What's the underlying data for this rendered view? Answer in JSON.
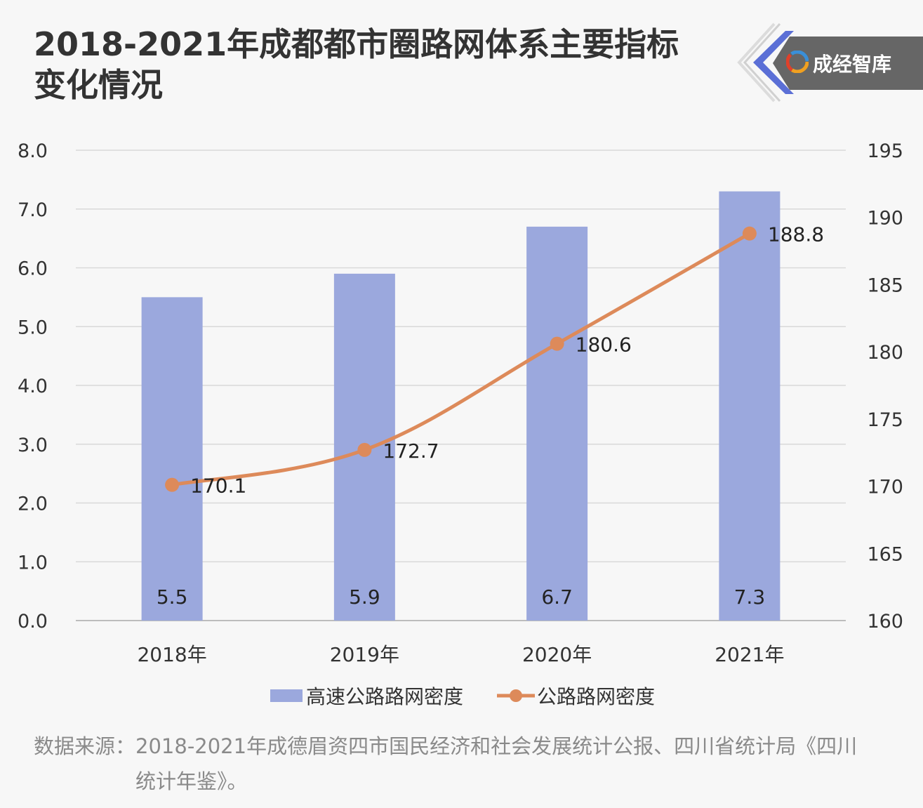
{
  "title": {
    "line1": "2018-2021年成都都市圈路网体系主要指标",
    "line2": "变化情况"
  },
  "brand": {
    "name": "成经智库",
    "icon": "logo-swirl-icon",
    "accent": "#5b6fd6"
  },
  "source": {
    "label": "数据来源：",
    "text": "2018-2021年成德眉资四市国民经济和社会发展统计公报、四川省统计局《四川统计年鉴》。"
  },
  "chart_data": {
    "type": "bar+line",
    "categories": [
      "2018年",
      "2019年",
      "2020年",
      "2021年"
    ],
    "series": [
      {
        "name": "高速公路路网密度",
        "type": "bar",
        "axis": "left",
        "values": [
          5.5,
          5.9,
          6.7,
          7.3
        ],
        "display_labels": [
          "5.5",
          "5.9",
          "6.7",
          "7.3"
        ],
        "color": "#9ba8dd"
      },
      {
        "name": "公路路网密度",
        "type": "line",
        "axis": "right",
        "values": [
          170.1,
          172.7,
          180.6,
          188.8
        ],
        "display_labels": [
          "170.1",
          "172.7",
          "180.6",
          "188.8"
        ],
        "color": "#dd8a5a"
      }
    ],
    "y_left": {
      "min": 0,
      "max": 8,
      "ticks": [
        "0.0",
        "1.0",
        "2.0",
        "3.0",
        "4.0",
        "5.0",
        "6.0",
        "7.0",
        "8.0"
      ]
    },
    "y_right": {
      "min": 160,
      "max": 195,
      "ticks": [
        "160",
        "165",
        "170",
        "175",
        "180",
        "185",
        "190",
        "195"
      ]
    },
    "grid": true,
    "legend_position": "bottom"
  }
}
